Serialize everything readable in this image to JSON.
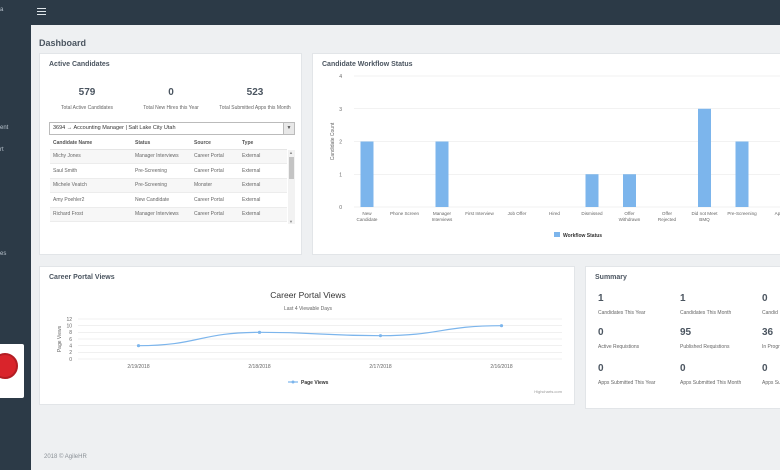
{
  "page": {
    "title": "Dashboard",
    "footer": "2018 © AgileHR"
  },
  "sidebar": {
    "glyphs": [
      "a",
      "ent",
      "rt",
      "es"
    ]
  },
  "active_candidates": {
    "title": "Active Candidates",
    "stats": [
      {
        "value": "579",
        "label": "Total Active Candidates"
      },
      {
        "value": "0",
        "label": "Total New Hires this Year"
      },
      {
        "value": "523",
        "label": "Total Submitted Apps this Month"
      }
    ],
    "select_value": "3694  →  Accounting Manager | Salt Lake City Utah",
    "columns": [
      "Candidate Name",
      "Status",
      "Source",
      "Type"
    ],
    "rows": [
      [
        "Michy Jones",
        "Manager Interviews",
        "Career Portal",
        "External"
      ],
      [
        "Saul Smith",
        "Pre-Screening",
        "Career Portal",
        "External"
      ],
      [
        "Michele Veatch",
        "Pre-Screening",
        "Monster",
        "External"
      ],
      [
        "Amy Poehler2",
        "New Candidate",
        "Career Portal",
        "External"
      ],
      [
        "Richard Frost",
        "Manager Interviews",
        "Career Portal",
        "External"
      ]
    ]
  },
  "workflow": {
    "title": "Candidate Workflow Status",
    "chart_data": {
      "type": "bar",
      "categories": [
        "New Candidate",
        "Phone Screen",
        "Manager Interviews",
        "First Interview",
        "Job Offer",
        "Hired",
        "Dismissed",
        "Offer Withdrawn",
        "Offer Rejected",
        "Did not Meet BMQ",
        "Pre-Screening",
        "Appr"
      ],
      "series": [
        {
          "name": "Workflow Status",
          "values": [
            2,
            0,
            2,
            0,
            0,
            0,
            1,
            1,
            0,
            3,
            2,
            0
          ]
        }
      ],
      "ylabel": "Candidate Count",
      "ylim": [
        0,
        4
      ],
      "yticks": [
        "0",
        "1",
        "2",
        "3",
        "4"
      ],
      "color": "#7cb5ec",
      "legend": "bottom"
    }
  },
  "career_views": {
    "title": "Career Portal Views",
    "chart_data": {
      "type": "line",
      "title": "Career Portal Views",
      "subtitle": "Last 4 Viewable Days",
      "categories": [
        "2/19/2018",
        "2/18/2018",
        "2/17/2018",
        "2/16/2018"
      ],
      "series": [
        {
          "name": "Page Views",
          "values": [
            4,
            8,
            7,
            10
          ]
        }
      ],
      "ylabel": "Page Views",
      "ylim": [
        0,
        12
      ],
      "yticks": [
        "0",
        "2",
        "4",
        "6",
        "8",
        "10",
        "12"
      ],
      "color": "#7cb5ec",
      "legend": "bottom",
      "credit": "Highcharts.com"
    }
  },
  "summary": {
    "title": "Summary",
    "items": [
      {
        "value": "1",
        "label": "Candidates This Year"
      },
      {
        "value": "1",
        "label": "Candidates This Month"
      },
      {
        "value": "0",
        "label": "Candid"
      },
      {
        "value": "0",
        "label": "Active Requistions"
      },
      {
        "value": "95",
        "label": "Published Requistions"
      },
      {
        "value": "36",
        "label": "In Progr"
      },
      {
        "value": "0",
        "label": "Apps Submitted This Year"
      },
      {
        "value": "0",
        "label": "Apps Submitted This Month"
      },
      {
        "value": "0",
        "label": "Apps Sub"
      }
    ]
  }
}
